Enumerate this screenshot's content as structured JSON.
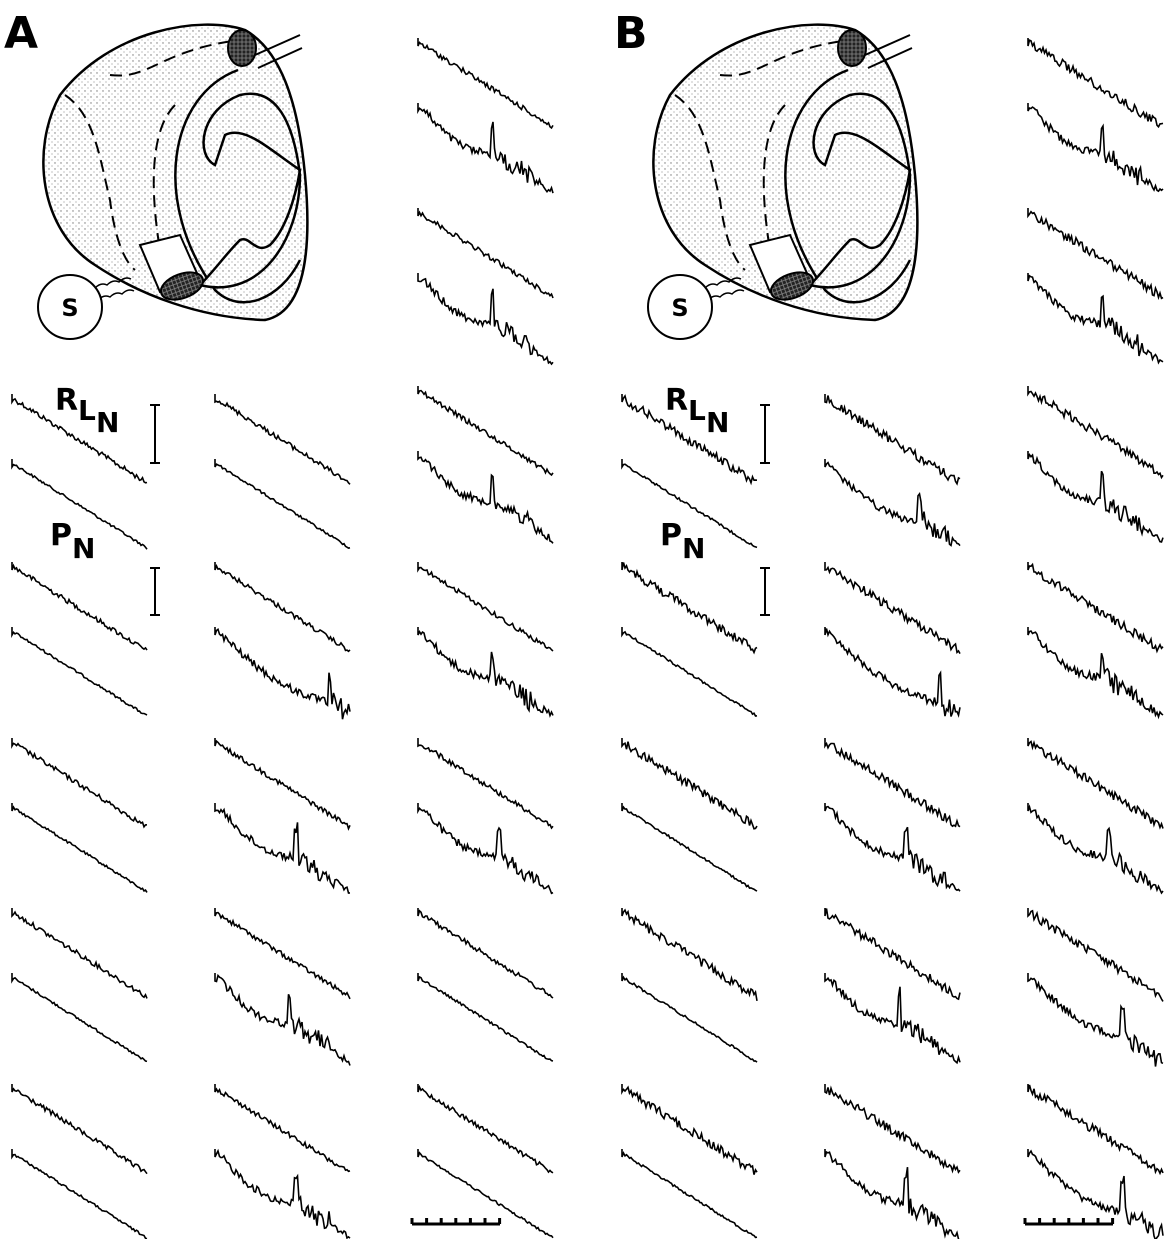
{
  "panels": [
    {
      "label": "A",
      "stimulator": "S",
      "rln": {
        "main": "R",
        "sub1": "L",
        "sub2": "N"
      },
      "pn": {
        "main": "P",
        "sub": "N"
      }
    },
    {
      "label": "B",
      "stimulator": "S",
      "rln": {
        "main": "R",
        "sub1": "L",
        "sub2": "N"
      },
      "pn": {
        "main": "P",
        "sub": "N"
      }
    }
  ]
}
